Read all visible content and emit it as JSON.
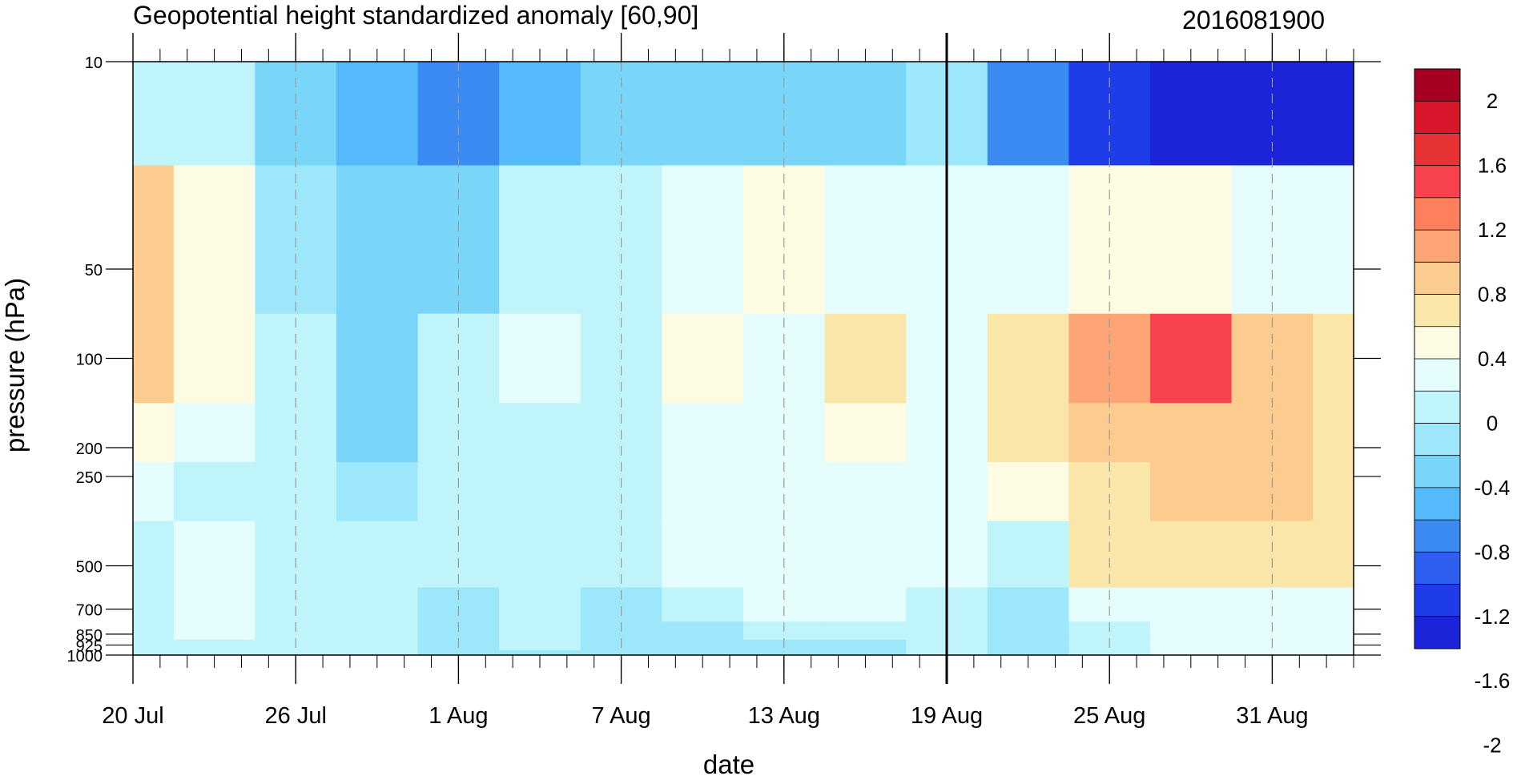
{
  "chart_data": {
    "type": "heatmap",
    "title": "Geopotential height standardized anomaly [60,90]",
    "title_right": "2016081900",
    "xlabel": "date",
    "ylabel": "pressure (hPa)",
    "x_dates": [
      "2016-07-20",
      "2016-07-23",
      "2016-07-26",
      "2016-07-29",
      "2016-08-01",
      "2016-08-04",
      "2016-08-07",
      "2016-08-10",
      "2016-08-13",
      "2016-08-16",
      "2016-08-19",
      "2016-08-22",
      "2016-08-25",
      "2016-08-28",
      "2016-08-31",
      "2016-09-03"
    ],
    "x_tick_labels": [
      "20 Jul",
      "26 Jul",
      "1 Aug",
      "7 Aug",
      "13 Aug",
      "19 Aug",
      "25 Aug",
      "31 Aug"
    ],
    "x_tick_dates": [
      "2016-07-20",
      "2016-07-26",
      "2016-08-01",
      "2016-08-07",
      "2016-08-13",
      "2016-08-19",
      "2016-08-25",
      "2016-08-31"
    ],
    "x_range": [
      "2016-07-20",
      "2016-09-03"
    ],
    "forecast_start": "2016-08-19",
    "y_levels": [
      10,
      50,
      100,
      200,
      250,
      500,
      700,
      850,
      925,
      1000
    ],
    "y_tick_labels": [
      "10",
      "50",
      "100",
      "200",
      "250",
      "500",
      "700",
      "850",
      "925",
      "1000"
    ],
    "y_range": [
      10,
      1000
    ],
    "y_scale": "log",
    "y_reversed": true,
    "values": [
      [
        0.1,
        0.1,
        -0.2,
        -0.5,
        -0.6,
        -0.5,
        -0.4,
        -0.4,
        -0.4,
        -0.3,
        -0.1,
        -0.6,
        -1.0,
        -1.4,
        -1.8,
        -2.0
      ],
      [
        0.9,
        0.5,
        -0.1,
        -0.3,
        -0.2,
        0.2,
        0.1,
        0.4,
        0.5,
        0.4,
        0.3,
        0.3,
        0.5,
        0.5,
        0.3,
        0.3
      ],
      [
        0.9,
        0.5,
        0.2,
        -0.2,
        0.1,
        0.4,
        0.2,
        0.5,
        0.4,
        0.6,
        0.4,
        0.6,
        1.1,
        1.5,
        1.0,
        0.7
      ],
      [
        0.5,
        0.3,
        0.1,
        -0.2,
        0.1,
        0.2,
        0.2,
        0.4,
        0.4,
        0.5,
        0.4,
        0.6,
        0.9,
        1.0,
        0.9,
        0.7
      ],
      [
        0.3,
        0.2,
        0.1,
        -0.1,
        0.1,
        0.1,
        0.2,
        0.4,
        0.4,
        0.4,
        0.4,
        0.5,
        0.7,
        0.8,
        0.8,
        0.7
      ],
      [
        0.2,
        0.3,
        0.1,
        0.1,
        0.1,
        0.1,
        0.1,
        0.3,
        0.4,
        0.4,
        0.3,
        0.2,
        0.6,
        0.6,
        0.6,
        0.6
      ],
      [
        0.1,
        0.3,
        0.2,
        0.1,
        -0.1,
        0.1,
        0.0,
        0.1,
        0.3,
        0.3,
        0.2,
        0.0,
        0.3,
        0.4,
        0.4,
        0.4
      ],
      [
        0.1,
        0.3,
        0.2,
        0.1,
        -0.1,
        0.1,
        -0.1,
        -0.1,
        0.1,
        0.2,
        0.2,
        0.0,
        0.2,
        0.3,
        0.3,
        0.3
      ],
      [
        0.1,
        0.2,
        0.1,
        0.1,
        -0.1,
        0.1,
        -0.1,
        -0.1,
        -0.1,
        0.0,
        0.1,
        0.0,
        0.1,
        0.3,
        0.3,
        0.3
      ],
      [
        0.1,
        0.2,
        0.1,
        0.1,
        -0.1,
        0.0,
        -0.1,
        -0.1,
        -0.1,
        0.0,
        0.1,
        -0.1,
        0.1,
        0.3,
        0.3,
        0.3
      ]
    ],
    "colorbar": {
      "labels": [
        "2",
        "1.6",
        "1.2",
        "0.8",
        "0.4",
        "0",
        "-0.4",
        "-0.8",
        "-1.2",
        "-1.6",
        "-2"
      ],
      "colors": [
        "#a50021",
        "#d7182a",
        "#e63232",
        "#f8434e",
        "#fd7f5c",
        "#fda575",
        "#fbcc8e",
        "#fbe6aa",
        "#fefbe3",
        "#e5fdfd",
        "#bff4fb",
        "#9ce8fa",
        "#7ad6f9",
        "#55bafa",
        "#3c8bf3",
        "#2d5ff0",
        "#1e3de8",
        "#1b24d8"
      ]
    },
    "colors": {
      "contour_line": "#000000",
      "frame": "#000000",
      "gridline": "#999999"
    }
  }
}
